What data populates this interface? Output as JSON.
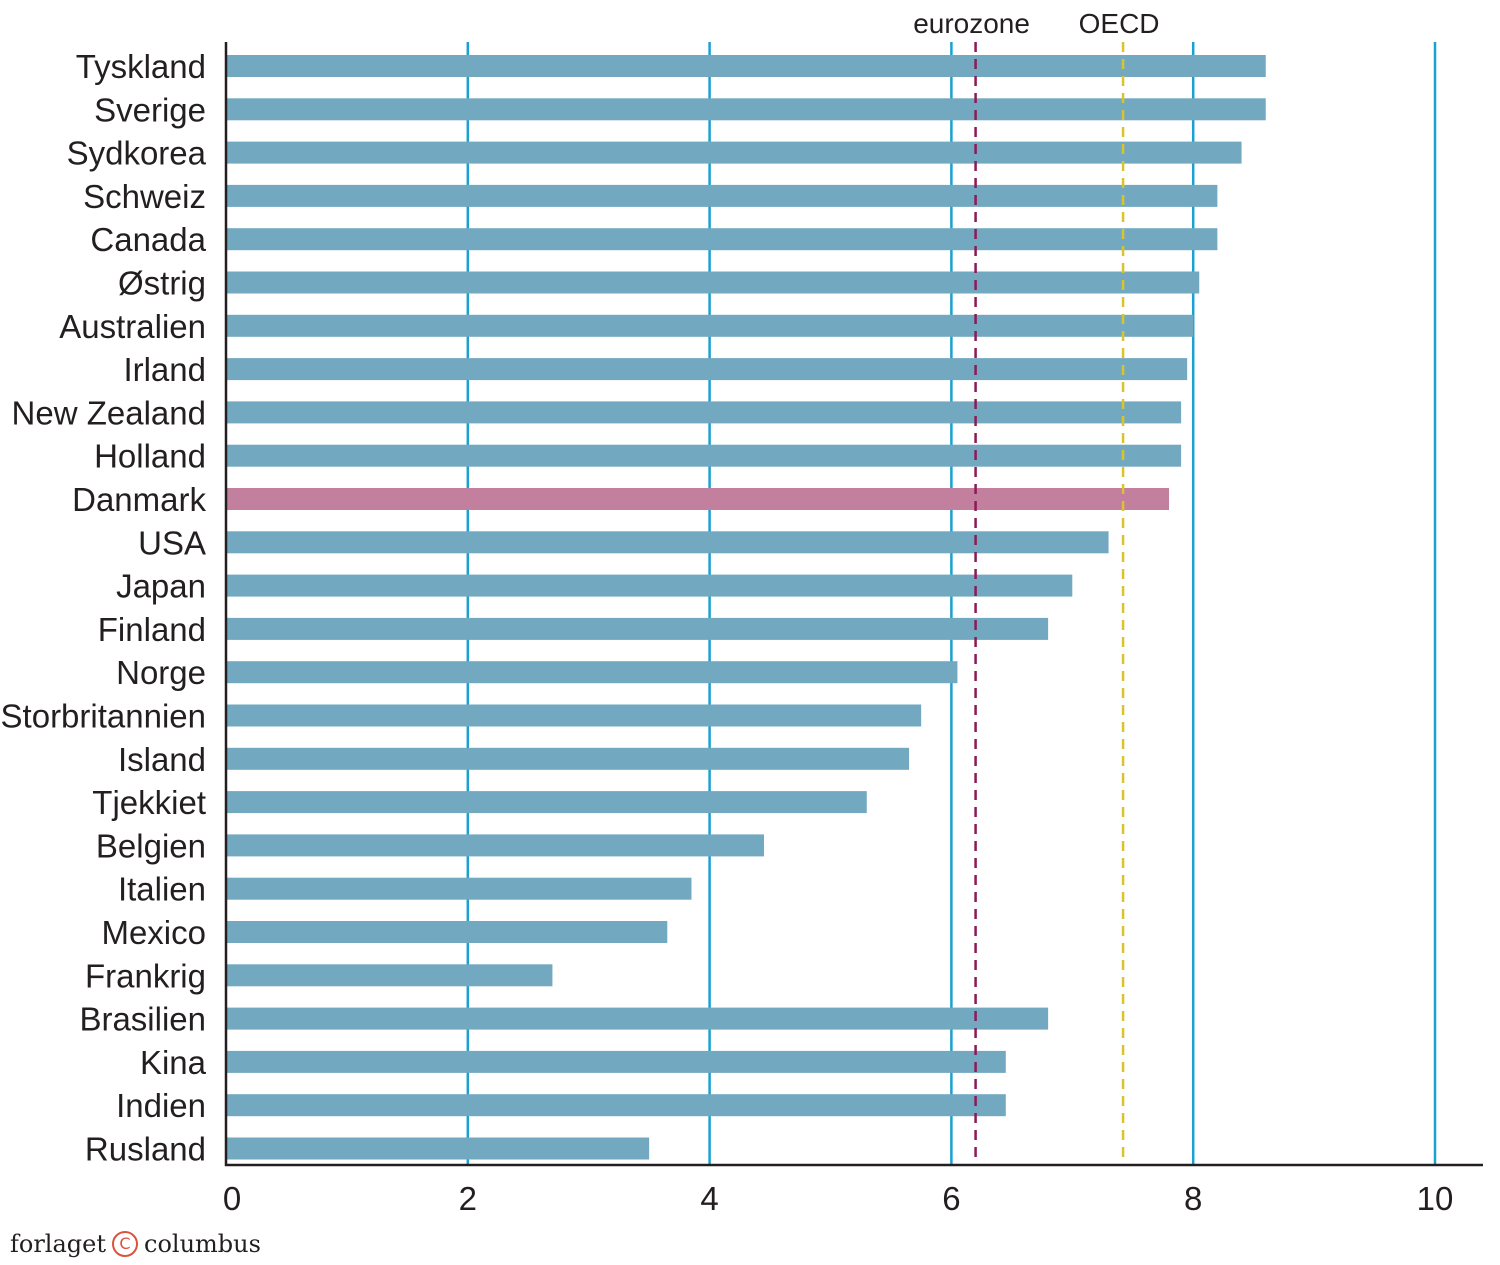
{
  "chart_data": {
    "type": "bar",
    "orientation": "horizontal",
    "categories": [
      "Tyskland",
      "Sverige",
      "Sydkorea",
      "Schweiz",
      "Canada",
      "Østrig",
      "Australien",
      "Irland",
      "New Zealand",
      "Holland",
      "Danmark",
      "USA",
      "Japan",
      "Finland",
      "Norge",
      "Storbritannien",
      "Island",
      "Tjekkiet",
      "Belgien",
      "Italien",
      "Mexico",
      "Frankrig",
      "Brasilien",
      "Kina",
      "Indien",
      "Rusland"
    ],
    "values": [
      8.6,
      8.6,
      8.4,
      8.2,
      8.2,
      8.05,
      8.0,
      7.95,
      7.9,
      7.9,
      7.8,
      7.3,
      7.0,
      6.8,
      6.05,
      5.75,
      5.65,
      5.3,
      4.45,
      3.85,
      3.65,
      2.7,
      6.8,
      6.45,
      6.45,
      3.5
    ],
    "highlight": "Danmark",
    "colors": {
      "bar": "#72a9c1",
      "highlight": "#c27f9e",
      "grid": "#1ba1d1",
      "eurozone": "#8b1a55",
      "oecd": "#d8c42e",
      "axis": "#231f20"
    },
    "xlim": [
      0,
      10
    ],
    "xticks": [
      "0",
      "2",
      "4",
      "6",
      "8",
      "10"
    ],
    "reference_lines": [
      {
        "label": "eurozone",
        "value": 6.2,
        "style": "dashed",
        "color": "#8b1a55"
      },
      {
        "label": "OECD",
        "value": 7.42,
        "style": "dashed",
        "color": "#d8c42e"
      }
    ],
    "grid": true,
    "title": "",
    "xlabel": "",
    "ylabel": ""
  },
  "footer": {
    "publisher_left": "forlaget",
    "icon": "copyright-icon",
    "publisher_right": "columbus",
    "copyright_glyph": "C"
  }
}
